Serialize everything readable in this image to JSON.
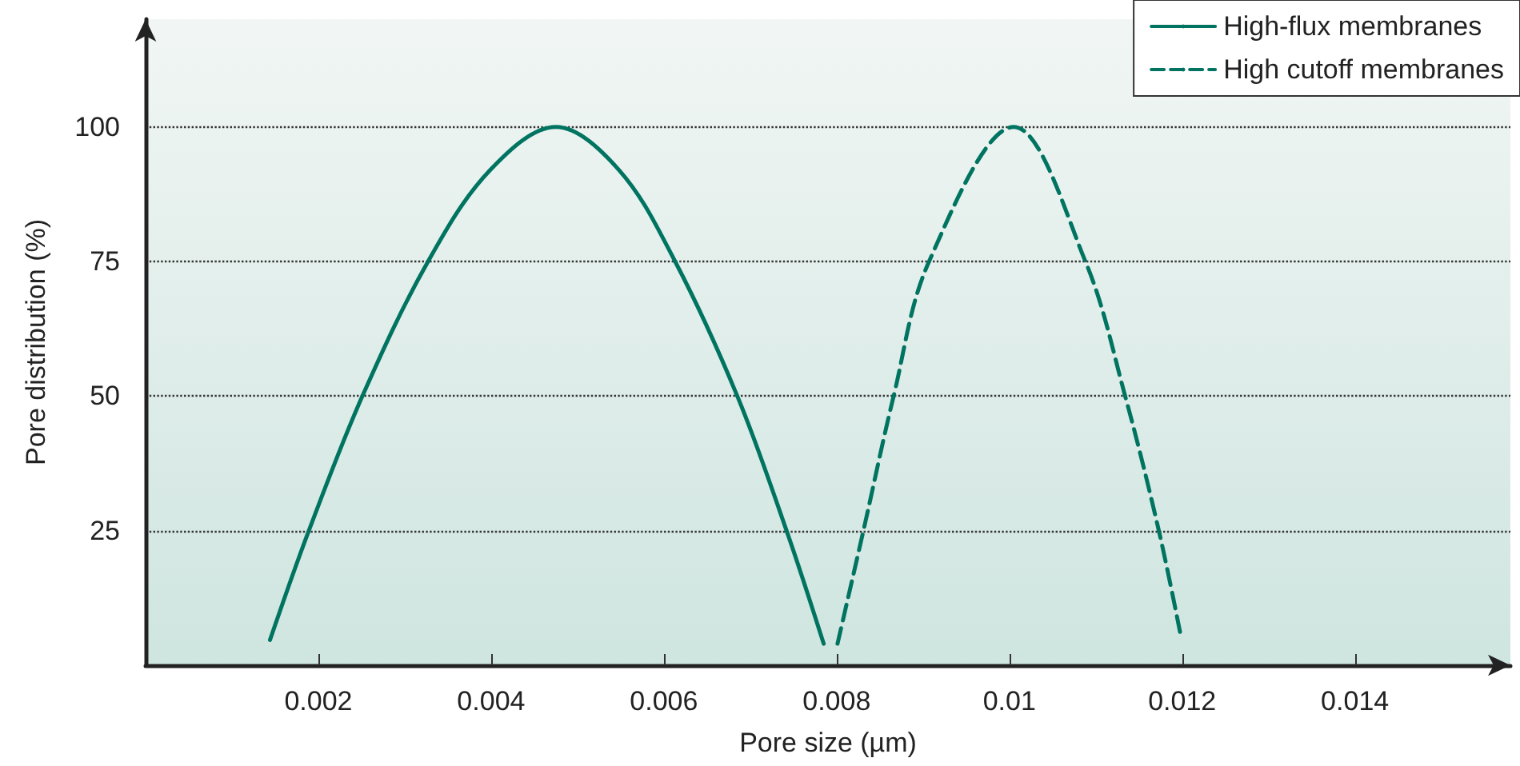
{
  "chart_data": {
    "type": "line",
    "xlabel": "Pore size (µm)",
    "ylabel": "Pore distribution (%)",
    "xlim": [
      0,
      0.0158
    ],
    "ylim": [
      0,
      120
    ],
    "xticks": [
      0.002,
      0.004,
      0.006,
      0.008,
      0.01,
      0.012,
      0.014
    ],
    "yticks": [
      25,
      50,
      75,
      100
    ],
    "grid": "y",
    "legend": "top right",
    "marker": "none",
    "series": [
      {
        "name": "High-flux membranes",
        "color": "#007461",
        "line_style": "solid",
        "x": [
          0.00144,
          0.00189,
          0.00251,
          0.00327,
          0.00399,
          0.00475,
          0.00548,
          0.00613,
          0.00685,
          0.00742,
          0.00785
        ],
        "values": [
          4.7,
          25,
          50,
          75,
          92,
          100,
          92,
          75,
          50,
          25,
          4
        ]
      },
      {
        "name": "High cutoff membranes",
        "color": "#007461",
        "line_style": "dashed",
        "x": [
          0.00801,
          0.00831,
          0.00866,
          0.00907,
          0.01005,
          0.01088,
          0.01134,
          0.01173,
          0.01199
        ],
        "values": [
          4,
          25,
          50,
          75,
          100,
          75,
          50,
          25,
          5
        ]
      }
    ]
  }
}
